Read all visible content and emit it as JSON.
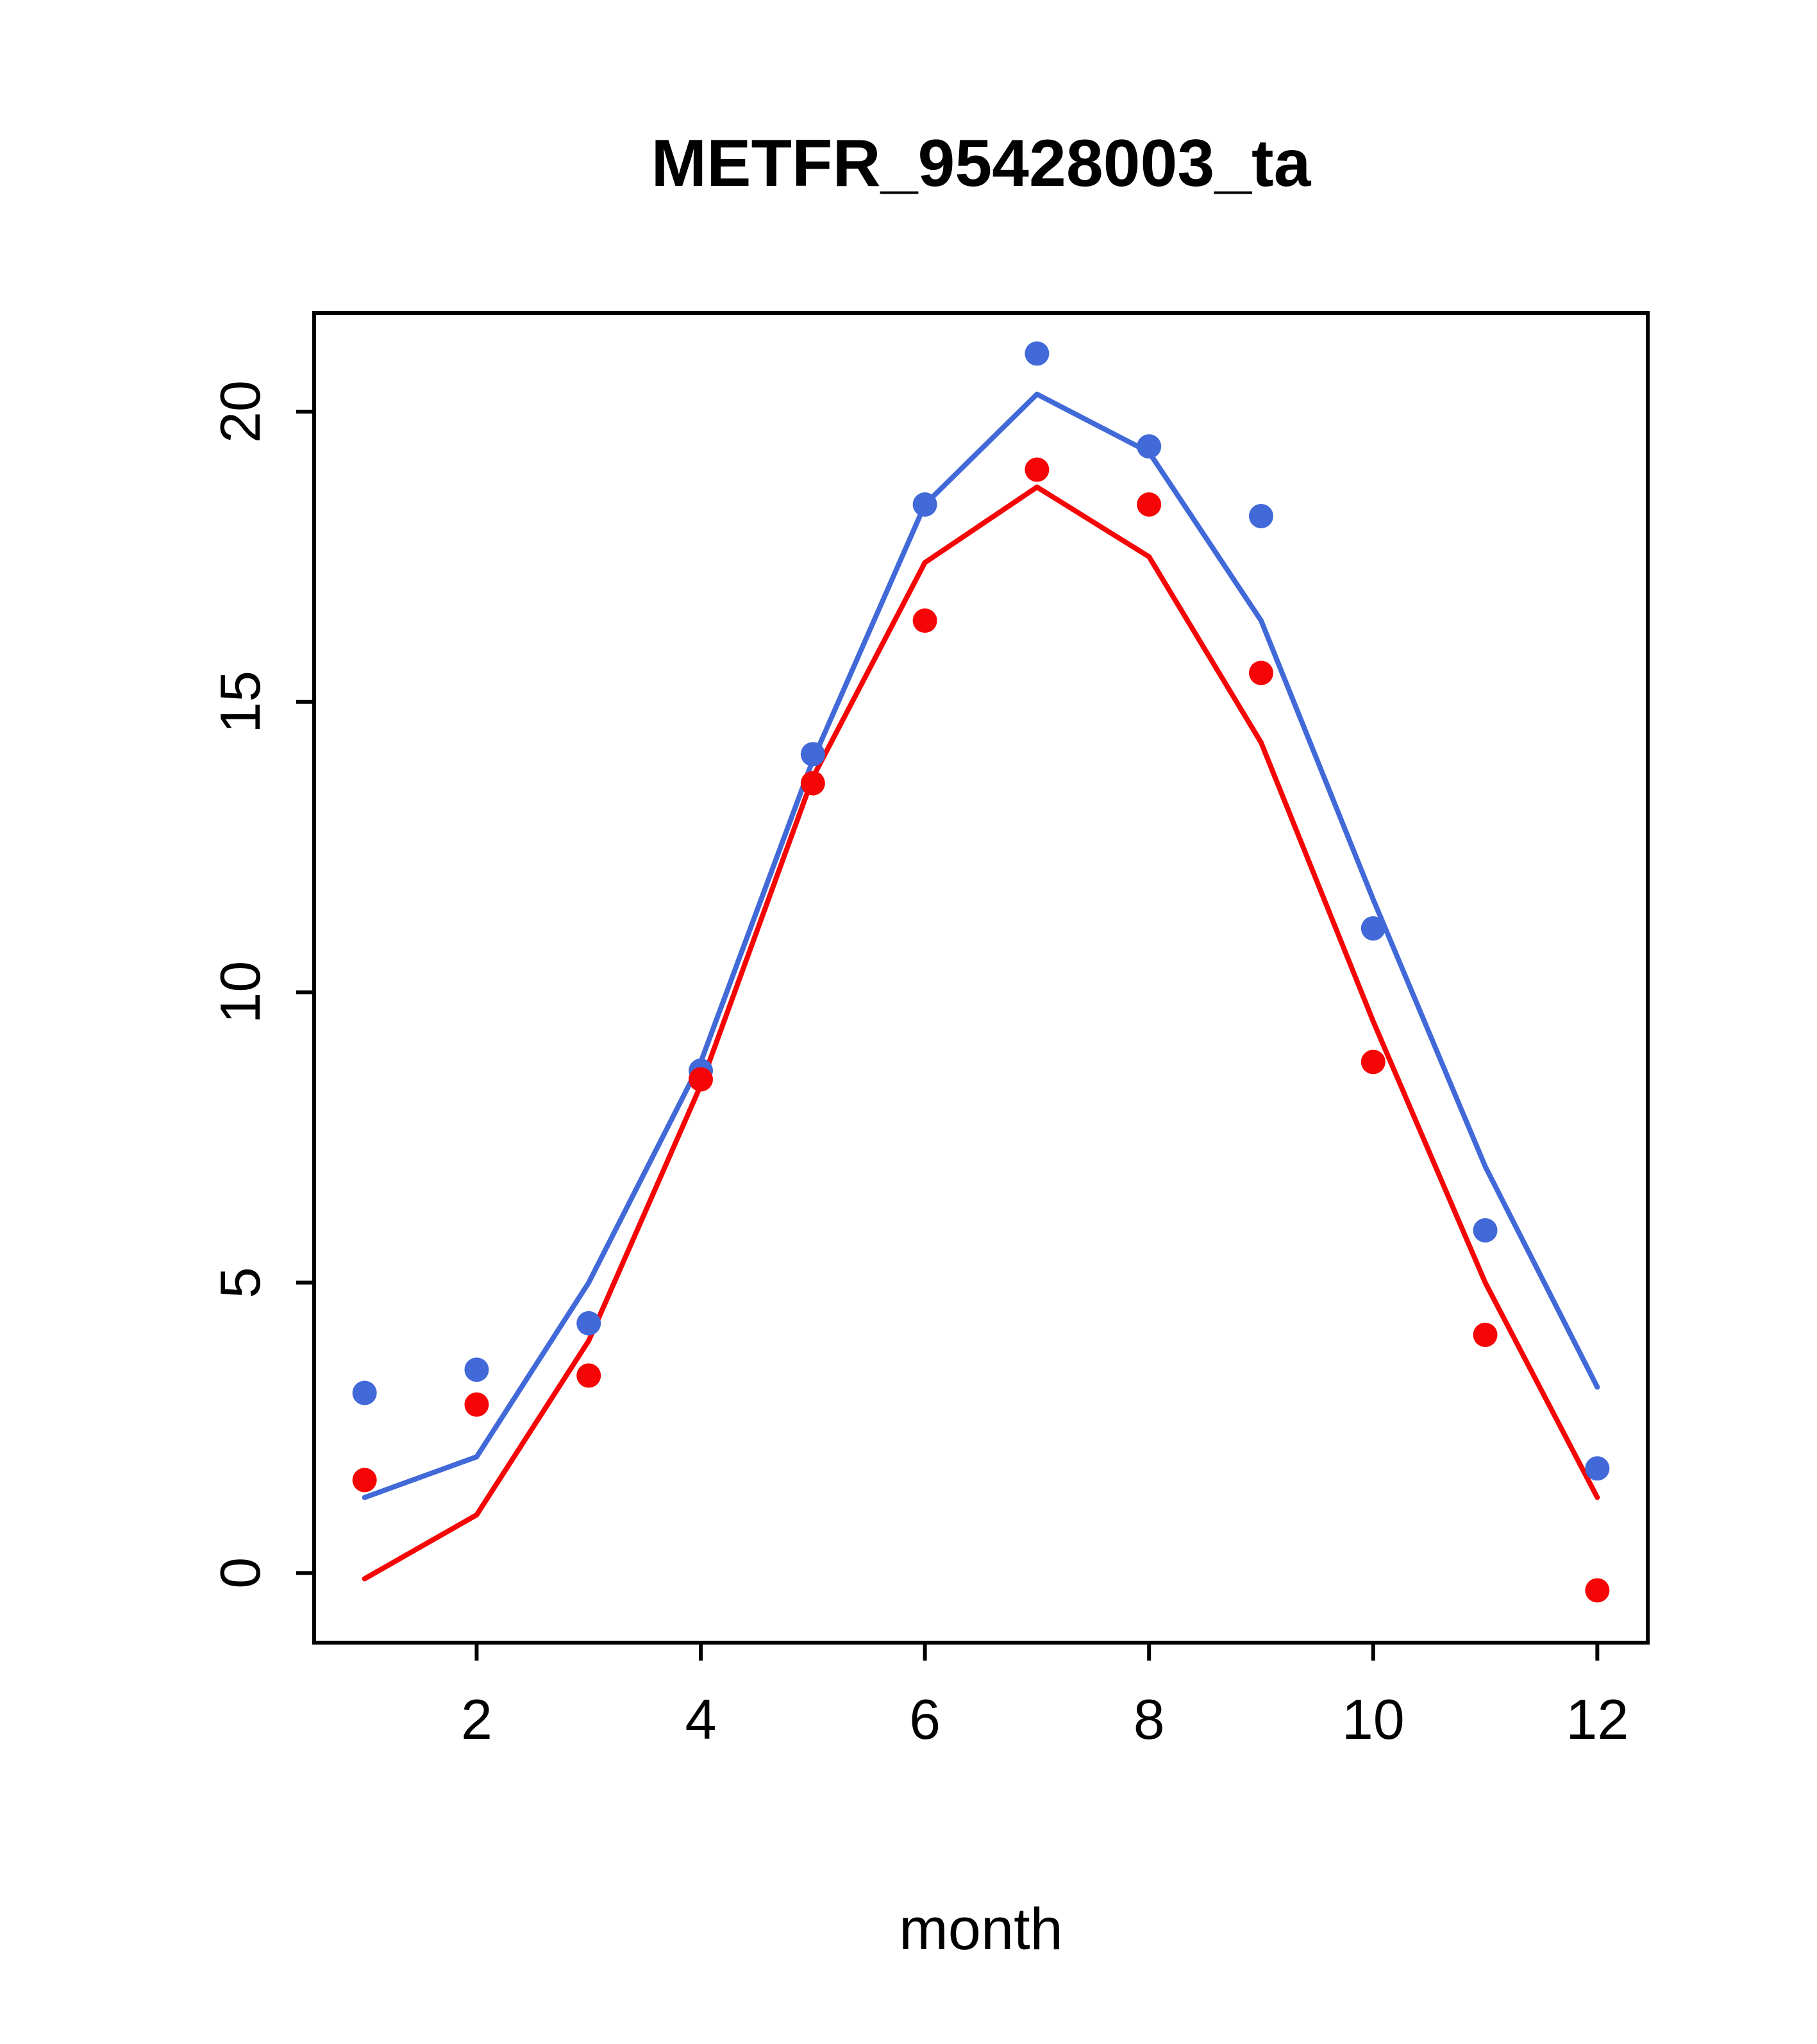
{
  "chart_data": {
    "type": "line",
    "title": "METFR_95428003_ta",
    "xlabel": "month",
    "ylabel": "",
    "x": [
      1,
      2,
      3,
      4,
      5,
      6,
      7,
      8,
      9,
      10,
      11,
      12
    ],
    "xticks": [
      2,
      4,
      6,
      8,
      10,
      12
    ],
    "yticks": [
      0,
      5,
      10,
      15,
      20
    ],
    "xlim": [
      0.55,
      12.45
    ],
    "ylim": [
      -1.2,
      21.7
    ],
    "grid": false,
    "legend": "none",
    "colors": {
      "blue": "#4169D8",
      "red": "#F50505"
    },
    "series": [
      {
        "name": "blue-line",
        "kind": "line",
        "color": "#4169D8",
        "values": [
          1.3,
          2.0,
          5.0,
          8.8,
          14.0,
          18.4,
          20.3,
          19.3,
          16.4,
          11.6,
          7.0,
          3.2
        ]
      },
      {
        "name": "red-line",
        "kind": "line",
        "color": "#F50505",
        "values": [
          -0.1,
          1.0,
          4.0,
          8.4,
          13.7,
          17.4,
          18.7,
          17.5,
          14.3,
          9.5,
          5.0,
          1.3
        ]
      },
      {
        "name": "blue-points",
        "kind": "scatter",
        "color": "#4169D8",
        "values": [
          3.1,
          3.5,
          4.3,
          8.65,
          14.1,
          18.4,
          21.0,
          19.4,
          18.2,
          11.1,
          5.9,
          1.8
        ]
      },
      {
        "name": "red-points",
        "kind": "scatter",
        "color": "#F50505",
        "values": [
          1.6,
          2.9,
          3.4,
          8.5,
          13.6,
          16.4,
          19.0,
          18.4,
          15.5,
          8.8,
          4.1,
          -0.3
        ]
      }
    ]
  }
}
